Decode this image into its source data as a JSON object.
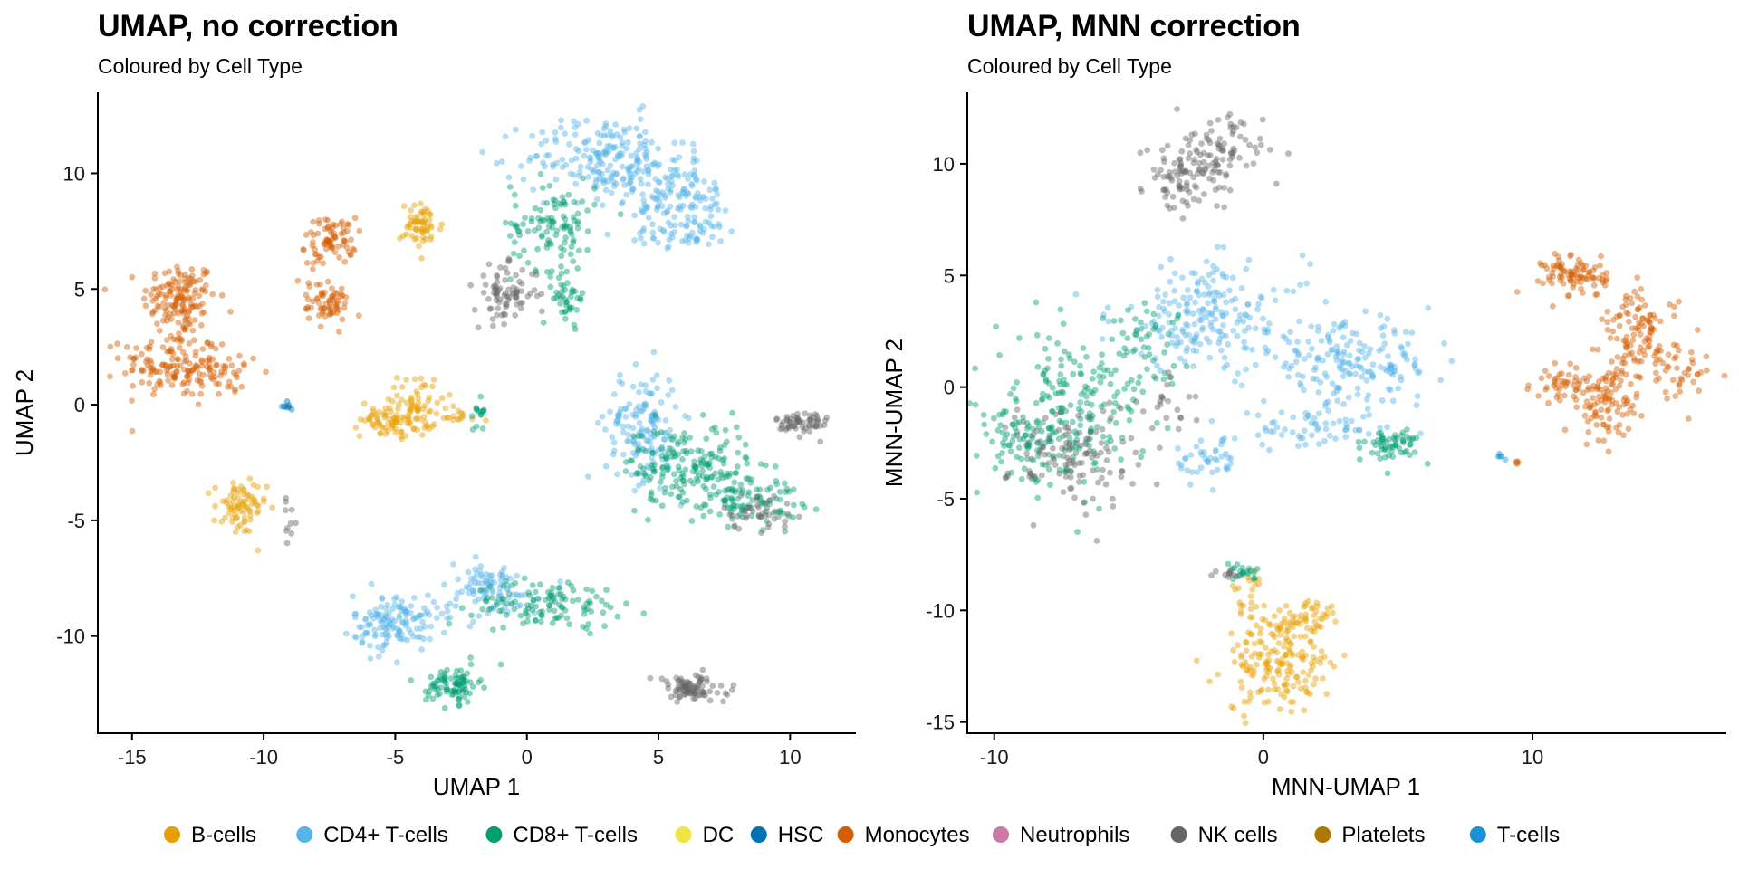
{
  "legend": {
    "items": [
      {
        "name": "B-cells",
        "color": "#E69F00"
      },
      {
        "name": "CD4+ T-cells",
        "color": "#56B4E9"
      },
      {
        "name": "CD8+ T-cells",
        "color": "#009E73"
      },
      {
        "name": "DC",
        "color": "#F0E442"
      },
      {
        "name": "HSC",
        "color": "#0072B2"
      },
      {
        "name": "Monocytes",
        "color": "#D55E00"
      },
      {
        "name": "Neutrophils",
        "color": "#CC79A7"
      },
      {
        "name": "NK cells",
        "color": "#666666"
      },
      {
        "name": "Platelets",
        "color": "#AD7700"
      },
      {
        "name": "T-cells",
        "color": "#1C91D4"
      }
    ],
    "position": "bottom"
  },
  "chart_data": [
    {
      "type": "scatter",
      "title": "UMAP, no correction",
      "subtitle": "Coloured by Cell Type",
      "xlabel": "UMAP 1",
      "ylabel": "UMAP 2",
      "xlim": [
        -16.3,
        12.5
      ],
      "ylim": [
        -14.2,
        13.5
      ],
      "xticks": [
        {
          "value": -15,
          "label": "-15"
        },
        {
          "value": -10,
          "label": "-10"
        },
        {
          "value": -5,
          "label": "-5"
        },
        {
          "value": 0,
          "label": "0"
        },
        {
          "value": 5,
          "label": "5"
        },
        {
          "value": 10,
          "label": "10"
        }
      ],
      "yticks": [
        {
          "value": 10,
          "label": "10"
        },
        {
          "value": 5,
          "label": "5"
        },
        {
          "value": 0,
          "label": "0"
        },
        {
          "value": -5,
          "label": "-5"
        },
        {
          "value": -10,
          "label": "-10"
        }
      ],
      "clusters": [
        {
          "cell_type": "Monocytes",
          "cx": -13.2,
          "cy": 4.6,
          "sx": 0.7,
          "sy": 0.8,
          "n": 140
        },
        {
          "cell_type": "Monocytes",
          "cx": -13.6,
          "cy": 1.8,
          "sx": 0.9,
          "sy": 0.7,
          "n": 120
        },
        {
          "cell_type": "Monocytes",
          "cx": -11.8,
          "cy": 1.4,
          "sx": 0.9,
          "sy": 0.6,
          "n": 60
        },
        {
          "cell_type": "Monocytes",
          "cx": -7.3,
          "cy": 7.1,
          "sx": 0.4,
          "sy": 0.5,
          "n": 60
        },
        {
          "cell_type": "Monocytes",
          "cx": -7.5,
          "cy": 4.3,
          "sx": 0.4,
          "sy": 0.4,
          "n": 55
        },
        {
          "cell_type": "Monocytes",
          "cx": -8.0,
          "cy": 6.0,
          "sx": 0.3,
          "sy": 0.9,
          "n": 30
        },
        {
          "cell_type": "B-cells",
          "cx": -4.0,
          "cy": 7.7,
          "sx": 0.4,
          "sy": 0.5,
          "n": 60
        },
        {
          "cell_type": "B-cells",
          "cx": -4.9,
          "cy": -0.6,
          "sx": 0.7,
          "sy": 0.4,
          "n": 100
        },
        {
          "cell_type": "B-cells",
          "cx": -4.1,
          "cy": 0.5,
          "sx": 0.4,
          "sy": 0.4,
          "n": 30
        },
        {
          "cell_type": "B-cells",
          "cx": -10.9,
          "cy": -4.5,
          "sx": 0.5,
          "sy": 0.6,
          "n": 80
        },
        {
          "cell_type": "B-cells",
          "cx": -2.7,
          "cy": -0.5,
          "sx": 0.6,
          "sy": 0.2,
          "n": 15
        },
        {
          "cell_type": "CD8+ T-cells",
          "cx": -1.8,
          "cy": -0.3,
          "sx": 0.12,
          "sy": 0.4,
          "n": 15
        },
        {
          "cell_type": "NK cells",
          "cx": -9.0,
          "cy": -5.0,
          "sx": 0.15,
          "sy": 0.4,
          "n": 10
        },
        {
          "cell_type": "T-cells",
          "cx": -9.2,
          "cy": -0.1,
          "sx": 0.1,
          "sy": 0.1,
          "n": 6
        },
        {
          "cell_type": "CD4+ T-cells",
          "cx": 3.0,
          "cy": 10.7,
          "sx": 1.5,
          "sy": 0.9,
          "n": 200
        },
        {
          "cell_type": "CD4+ T-cells",
          "cx": 5.6,
          "cy": 9.0,
          "sx": 1.2,
          "sy": 0.7,
          "n": 120
        },
        {
          "cell_type": "CD4+ T-cells",
          "cx": 6.0,
          "cy": 7.4,
          "sx": 1.1,
          "sy": 0.3,
          "n": 50
        },
        {
          "cell_type": "CD8+ T-cells",
          "cx": 1.0,
          "cy": 7.8,
          "sx": 0.8,
          "sy": 1.0,
          "n": 110
        },
        {
          "cell_type": "CD8+ T-cells",
          "cx": 1.6,
          "cy": 4.6,
          "sx": 0.3,
          "sy": 0.5,
          "n": 40
        },
        {
          "cell_type": "NK cells",
          "cx": -0.8,
          "cy": 4.8,
          "sx": 0.6,
          "sy": 0.6,
          "n": 80
        },
        {
          "cell_type": "CD4+ T-cells",
          "cx": 4.4,
          "cy": -0.9,
          "sx": 0.7,
          "sy": 1.2,
          "n": 140
        },
        {
          "cell_type": "CD8+ T-cells",
          "cx": 6.0,
          "cy": -2.6,
          "sx": 1.2,
          "sy": 0.9,
          "n": 160
        },
        {
          "cell_type": "CD8+ T-cells",
          "cx": 8.2,
          "cy": -4.0,
          "sx": 1.1,
          "sy": 0.6,
          "n": 110
        },
        {
          "cell_type": "NK cells",
          "cx": 8.8,
          "cy": -4.6,
          "sx": 0.7,
          "sy": 0.4,
          "n": 40
        },
        {
          "cell_type": "NK cells",
          "cx": 10.5,
          "cy": -0.8,
          "sx": 0.5,
          "sy": 0.3,
          "n": 60
        },
        {
          "cell_type": "CD4+ T-cells",
          "cx": -5.0,
          "cy": -9.4,
          "sx": 0.8,
          "sy": 0.6,
          "n": 140
        },
        {
          "cell_type": "CD4+ T-cells",
          "cx": -1.5,
          "cy": -8.0,
          "sx": 1.0,
          "sy": 0.6,
          "n": 90
        },
        {
          "cell_type": "CD8+ T-cells",
          "cx": 0.8,
          "cy": -8.6,
          "sx": 1.4,
          "sy": 0.5,
          "n": 120
        },
        {
          "cell_type": "CD8+ T-cells",
          "cx": -2.8,
          "cy": -12.1,
          "sx": 0.5,
          "sy": 0.4,
          "n": 90
        },
        {
          "cell_type": "NK cells",
          "cx": 6.2,
          "cy": -12.3,
          "sx": 0.7,
          "sy": 0.3,
          "n": 90
        },
        {
          "cell_type": "HSC",
          "cx": -9.0,
          "cy": 0.0,
          "sx": 0.06,
          "sy": 0.12,
          "n": 4
        }
      ]
    },
    {
      "type": "scatter",
      "title": "UMAP, MNN correction",
      "subtitle": "Coloured by Cell Type",
      "xlabel": "MNN-UMAP 1",
      "ylabel": "MNN-UMAP 2",
      "xlim": [
        -11.0,
        17.2
      ],
      "ylim": [
        -15.5,
        13.2
      ],
      "xticks": [
        {
          "value": -10,
          "label": "-10"
        },
        {
          "value": 0,
          "label": "0"
        },
        {
          "value": 10,
          "label": "10"
        }
      ],
      "yticks": [
        {
          "value": 10,
          "label": "10"
        },
        {
          "value": 5,
          "label": "5"
        },
        {
          "value": 0,
          "label": "0"
        },
        {
          "value": -5,
          "label": "-5"
        },
        {
          "value": -10,
          "label": "-10"
        },
        {
          "value": -15,
          "label": "-15"
        }
      ],
      "clusters": [
        {
          "cell_type": "NK cells",
          "cx": -1.8,
          "cy": 10.3,
          "sx": 0.9,
          "sy": 0.9,
          "n": 110
        },
        {
          "cell_type": "NK cells",
          "cx": -3.3,
          "cy": 9.2,
          "sx": 0.5,
          "sy": 0.8,
          "n": 50
        },
        {
          "cell_type": "CD4+ T-cells",
          "cx": -2.0,
          "cy": 3.2,
          "sx": 1.8,
          "sy": 1.2,
          "n": 200
        },
        {
          "cell_type": "CD4+ T-cells",
          "cx": 3.2,
          "cy": 1.0,
          "sx": 1.6,
          "sy": 0.9,
          "n": 180
        },
        {
          "cell_type": "CD4+ T-cells",
          "cx": 1.8,
          "cy": -1.9,
          "sx": 1.4,
          "sy": 0.4,
          "n": 60
        },
        {
          "cell_type": "CD4+ T-cells",
          "cx": -2.1,
          "cy": -3.3,
          "sx": 0.6,
          "sy": 0.5,
          "n": 40
        },
        {
          "cell_type": "CD8+ T-cells",
          "cx": -7.2,
          "cy": -1.0,
          "sx": 1.4,
          "sy": 1.6,
          "n": 200
        },
        {
          "cell_type": "CD8+ T-cells",
          "cx": -9.0,
          "cy": -2.5,
          "sx": 0.6,
          "sy": 0.7,
          "n": 60
        },
        {
          "cell_type": "CD8+ T-cells",
          "cx": 4.8,
          "cy": -2.6,
          "sx": 0.5,
          "sy": 0.4,
          "n": 60
        },
        {
          "cell_type": "CD8+ T-cells",
          "cx": -4.5,
          "cy": 2.0,
          "sx": 0.8,
          "sy": 0.9,
          "n": 50
        },
        {
          "cell_type": "NK cells",
          "cx": -7.0,
          "cy": -3.0,
          "sx": 1.2,
          "sy": 1.2,
          "n": 120
        },
        {
          "cell_type": "NK cells",
          "cx": -3.5,
          "cy": -0.8,
          "sx": 0.5,
          "sy": 0.6,
          "n": 20
        },
        {
          "cell_type": "Monocytes",
          "cx": 11.6,
          "cy": 5.0,
          "sx": 0.6,
          "sy": 0.5,
          "n": 90
        },
        {
          "cell_type": "Monocytes",
          "cx": 14.0,
          "cy": 2.2,
          "sx": 0.7,
          "sy": 1.0,
          "n": 120
        },
        {
          "cell_type": "Monocytes",
          "cx": 12.8,
          "cy": -0.8,
          "sx": 0.6,
          "sy": 0.9,
          "n": 90
        },
        {
          "cell_type": "Monocytes",
          "cx": 11.2,
          "cy": 0.1,
          "sx": 0.6,
          "sy": 0.4,
          "n": 50
        },
        {
          "cell_type": "Monocytes",
          "cx": 15.5,
          "cy": 0.3,
          "sx": 0.5,
          "sy": 0.6,
          "n": 30
        },
        {
          "cell_type": "Monocytes",
          "cx": 9.4,
          "cy": -3.4,
          "sx": 0.1,
          "sy": 0.06,
          "n": 4
        },
        {
          "cell_type": "B-cells",
          "cx": 0.6,
          "cy": -12.5,
          "sx": 1.0,
          "sy": 1.0,
          "n": 160
        },
        {
          "cell_type": "B-cells",
          "cx": 1.5,
          "cy": -10.5,
          "sx": 0.7,
          "sy": 0.5,
          "n": 60
        },
        {
          "cell_type": "B-cells",
          "cx": -0.6,
          "cy": -9.3,
          "sx": 0.3,
          "sy": 0.7,
          "n": 25
        },
        {
          "cell_type": "CD8+ T-cells",
          "cx": -0.7,
          "cy": -8.2,
          "sx": 0.3,
          "sy": 0.2,
          "n": 20
        },
        {
          "cell_type": "NK cells",
          "cx": -1.4,
          "cy": -8.4,
          "sx": 0.2,
          "sy": 0.1,
          "n": 10
        },
        {
          "cell_type": "T-cells",
          "cx": 8.8,
          "cy": -3.1,
          "sx": 0.08,
          "sy": 0.06,
          "n": 5
        }
      ]
    }
  ]
}
